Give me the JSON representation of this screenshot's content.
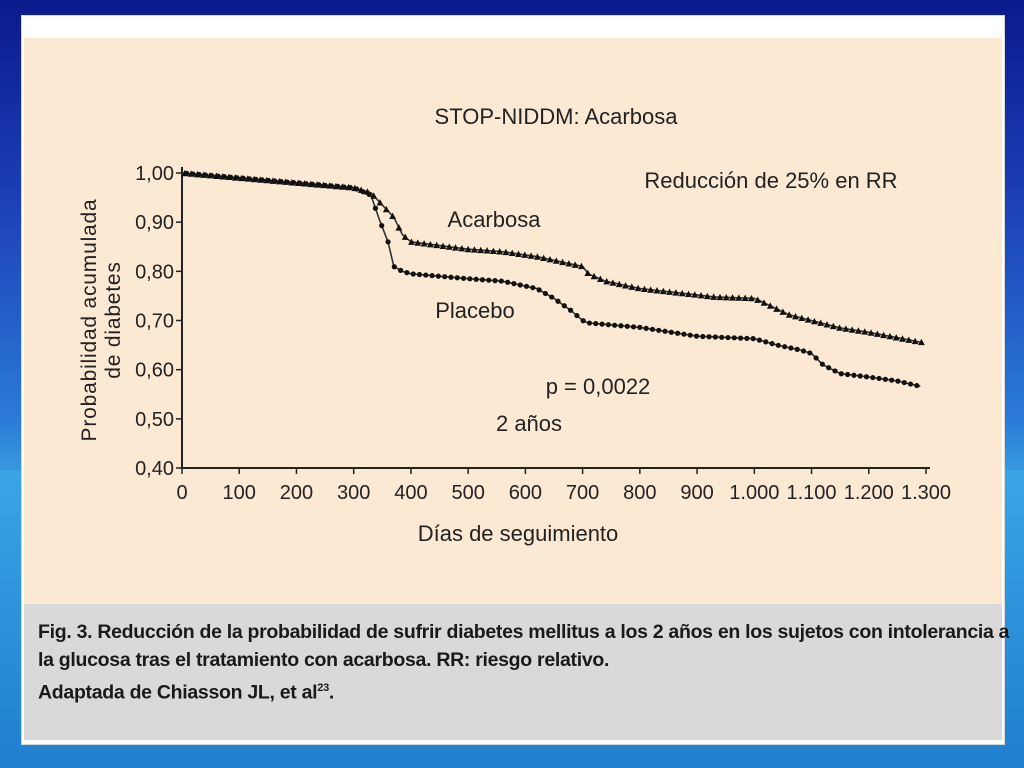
{
  "chart_data": {
    "type": "line",
    "title": "STOP-NIDDM: Acarbosa",
    "xlabel": "Días de seguimiento",
    "ylabel_line1": "Probabilidad acumulada",
    "ylabel_line2": "de diabetes",
    "xlim": [
      0,
      1300
    ],
    "ylim": [
      0.4,
      1.0
    ],
    "xticks": [
      0,
      100,
      200,
      300,
      400,
      500,
      600,
      700,
      800,
      900,
      1000,
      1100,
      1200,
      1300
    ],
    "xtick_labels": [
      "0",
      "100",
      "200",
      "300",
      "400",
      "500",
      "600",
      "700",
      "800",
      "900",
      "1.000",
      "1.100",
      "1.200",
      "1.300"
    ],
    "yticks": [
      0.4,
      0.5,
      0.6,
      0.7,
      0.8,
      0.9,
      1.0
    ],
    "ytick_labels": [
      "0,40",
      "0,50",
      "0,60",
      "0,70",
      "0,80",
      "0,90",
      "1,00"
    ],
    "annotations": {
      "reduction": "Reducción de 25% en RR",
      "pvalue": "p = 0,0022",
      "years": "2 años"
    },
    "series": [
      {
        "name": "Acarbosa",
        "marker": "triangle",
        "x": [
          0,
          100,
          200,
          300,
          330,
          350,
          370,
          385,
          400,
          500,
          560,
          620,
          680,
          700,
          710,
          740,
          760,
          800,
          900,
          930,
          1000,
          1010,
          1060,
          1100,
          1150,
          1200,
          1250,
          1290
        ],
        "y": [
          1.0,
          0.99,
          0.98,
          0.97,
          0.96,
          0.935,
          0.91,
          0.875,
          0.86,
          0.845,
          0.84,
          0.83,
          0.815,
          0.81,
          0.795,
          0.78,
          0.775,
          0.765,
          0.752,
          0.748,
          0.745,
          0.74,
          0.712,
          0.7,
          0.685,
          0.676,
          0.665,
          0.656
        ]
      },
      {
        "name": "Placebo",
        "marker": "circle",
        "x": [
          0,
          100,
          200,
          300,
          330,
          345,
          360,
          370,
          385,
          400,
          500,
          560,
          620,
          650,
          680,
          700,
          710,
          740,
          760,
          800,
          900,
          960,
          1000,
          1040,
          1080,
          1100,
          1120,
          1150,
          1200,
          1250,
          1290
        ],
        "y": [
          1.0,
          0.99,
          0.98,
          0.97,
          0.955,
          0.905,
          0.86,
          0.81,
          0.8,
          0.795,
          0.785,
          0.78,
          0.765,
          0.745,
          0.72,
          0.7,
          0.695,
          0.692,
          0.69,
          0.686,
          0.668,
          0.665,
          0.663,
          0.65,
          0.64,
          0.633,
          0.61,
          0.592,
          0.585,
          0.577,
          0.566
        ]
      }
    ]
  },
  "caption": {
    "line1": "Fig. 3. Reducción de la probabilidad de sufrir diabetes mellitus a los 2 años en los sujetos con intolerancia a",
    "line2": "la glucosa tras el tratamiento con acarbosa. RR: riesgo relativo.",
    "line3_text": "Adaptada de Chiasson JL, et al",
    "line3_ref": "23",
    "line3_end": "."
  }
}
